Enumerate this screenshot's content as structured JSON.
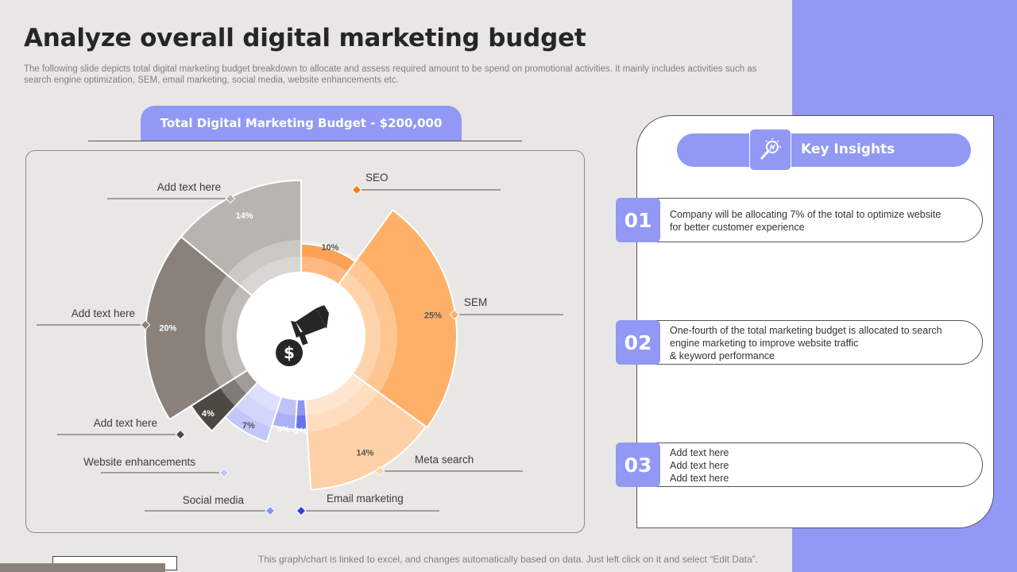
{
  "slide": {
    "title": "Analyze overall digital marketing budget",
    "subtitle": "The following slide depicts total digital marketing budget breakdown to allocate and assess required amount to be spend on promotional activities. It mainly includes activities such as search engine optimization, SEM, email marketing, social media, website enhancements etc.",
    "budget_header": "Total Digital Marketing Budget - $200,000",
    "footer_note": "This graph/chart is linked to excel,  and changes automatically based on data. Just left click on it and select “Edit Data”."
  },
  "chart_data": {
    "type": "pie",
    "variant": "doughnut",
    "slices": [
      {
        "label": "SEO",
        "value": 10,
        "value_label": "10%",
        "color": "#fd7e14"
      },
      {
        "label": "SEM",
        "value": 25,
        "value_label": "25%",
        "color": "#ffb068"
      },
      {
        "label": "Meta search",
        "value": 14,
        "value_label": "14%",
        "color": "#ffd1a8"
      },
      {
        "label": "Email marketing",
        "value": 2,
        "value_label": "2%",
        "color": "#2f3ee0"
      },
      {
        "label": "Social media",
        "value": 4,
        "value_label": "4%",
        "color": "#8a93f3"
      },
      {
        "label": "Website enhancements",
        "value": 7,
        "value_label": "7%",
        "color": "#c1c6fb"
      },
      {
        "label": "Add text here",
        "value": 4,
        "value_label": "4%",
        "color": "#4e4843"
      },
      {
        "label": "Add text here",
        "value": 20,
        "value_label": "20%",
        "color": "#8a817b"
      },
      {
        "label": "Add text here",
        "value": 14,
        "value_label": "14%",
        "color": "#b9b4af"
      }
    ]
  },
  "insights": {
    "title": "Key Insights",
    "icon": "lightbulb-search-icon",
    "items": [
      {
        "number": "01",
        "text": "Company will be allocating 7% of the total to optimize website\nfor better customer experience"
      },
      {
        "number": "02",
        "text": "One-fourth  of the total marketing budget is allocated to search\nengine marketing to improve  website traffic\n& keyword  performance"
      },
      {
        "number": "03",
        "text": "Add text here\nAdd text here\nAdd text here"
      }
    ]
  },
  "colors": {
    "accent": "#9199f5",
    "orange": "#fd7e14",
    "dark_text": "#262626"
  }
}
